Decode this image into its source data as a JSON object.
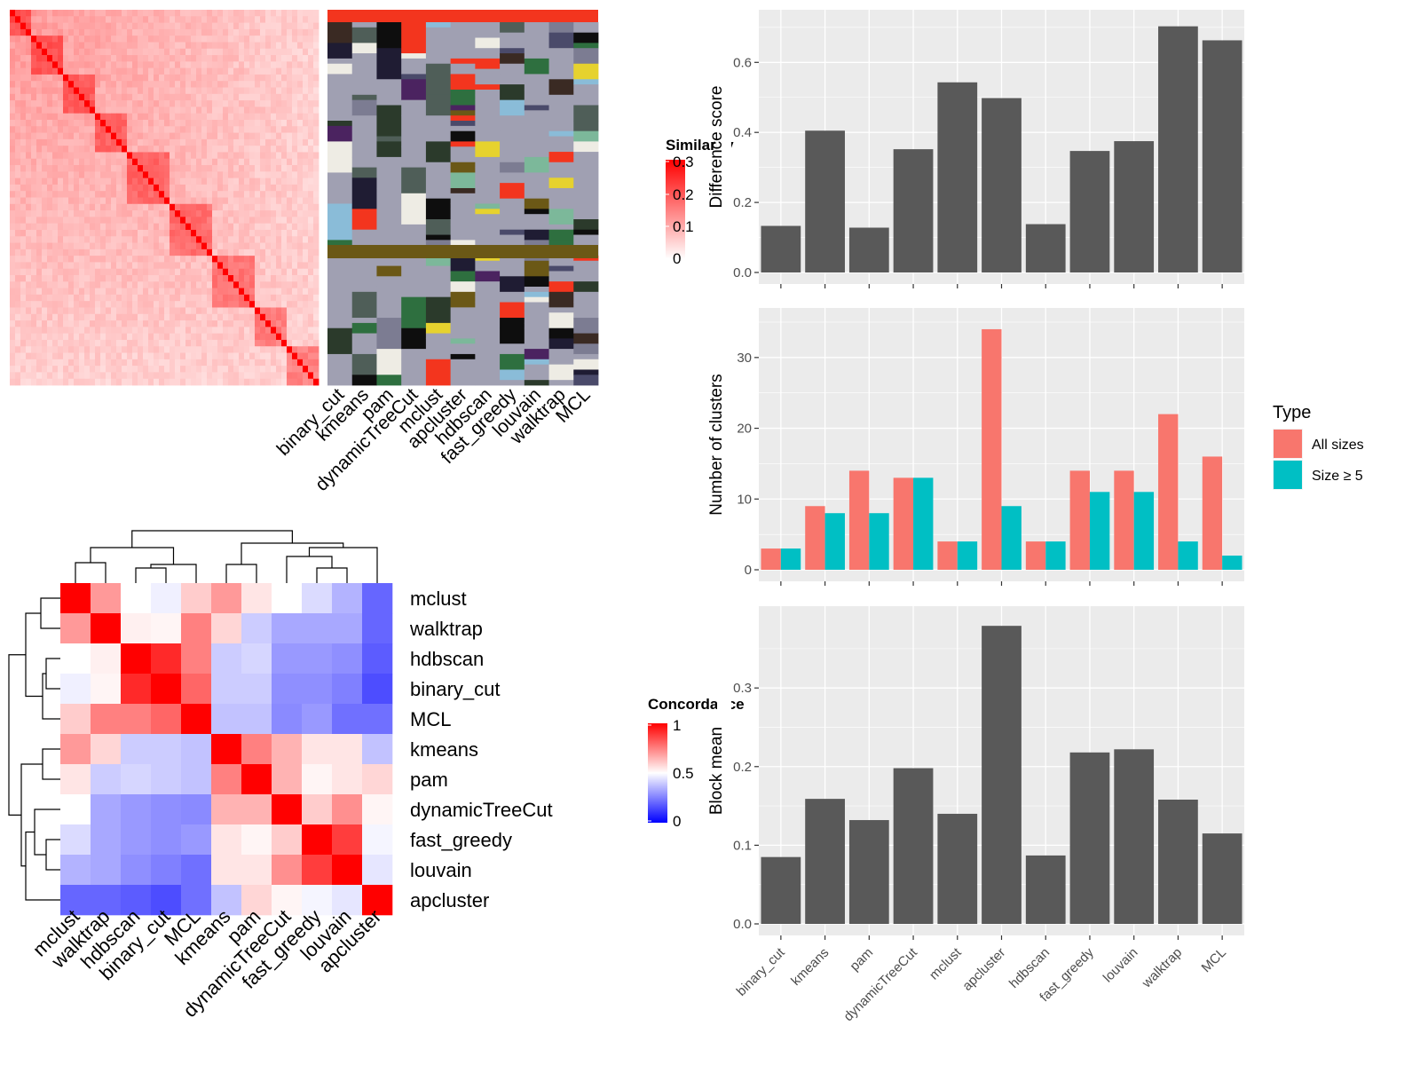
{
  "methods": [
    "binary_cut",
    "kmeans",
    "pam",
    "dynamicTreeCut",
    "mclust",
    "apcluster",
    "hdbscan",
    "fast_greedy",
    "louvain",
    "walktrap",
    "MCL"
  ],
  "similarity_legend": {
    "title": "Similarity",
    "ticks": [
      "0.3",
      "0.2",
      "0.1",
      "0"
    ],
    "colors": [
      "#ffffff",
      "#ff0000"
    ]
  },
  "concordance_legend": {
    "title": "Concordance",
    "ticks": [
      "1",
      "0.5",
      "0"
    ],
    "colors": [
      "#0000ff",
      "#ffffff",
      "#ff0000"
    ]
  },
  "palette": {
    "grey_bg": "#a0a0b2",
    "cluster_colors": [
      "#e6d22e",
      "#0e0e0e",
      "#4a4a6a",
      "#8abcd8",
      "#2b3a2b",
      "#4b2360",
      "#7cb89a",
      "#6b5816",
      "#1f1c33",
      "#eeece4",
      "#2e6f3f",
      "#3a2a23",
      "#f3351e",
      "#7c7c92",
      "#4f5e58"
    ]
  },
  "concordance_order": [
    "mclust",
    "walktrap",
    "hdbscan",
    "binary_cut",
    "MCL",
    "kmeans",
    "pam",
    "dynamicTreeCut",
    "fast_greedy",
    "louvain",
    "apcluster"
  ],
  "chart_data": [
    {
      "type": "heatmap",
      "name": "similarity_matrix",
      "legend_title": "Similarity",
      "value_range": [
        0,
        0.3
      ]
    },
    {
      "type": "heatmap",
      "name": "concordance",
      "legend_title": "Concordance",
      "row_labels": [
        "mclust",
        "walktrap",
        "hdbscan",
        "binary_cut",
        "MCL",
        "kmeans",
        "pam",
        "dynamicTreeCut",
        "fast_greedy",
        "louvain",
        "apcluster"
      ],
      "col_labels": [
        "mclust",
        "walktrap",
        "hdbscan",
        "binary_cut",
        "MCL",
        "kmeans",
        "pam",
        "dynamicTreeCut",
        "fast_greedy",
        "louvain",
        "apcluster"
      ],
      "values": [
        [
          1.0,
          0.7,
          0.5,
          0.47,
          0.6,
          0.7,
          0.55,
          0.5,
          0.43,
          0.35,
          0.2
        ],
        [
          0.7,
          1.0,
          0.53,
          0.52,
          0.75,
          0.58,
          0.4,
          0.33,
          0.33,
          0.33,
          0.2
        ],
        [
          0.5,
          0.53,
          1.0,
          0.92,
          0.75,
          0.4,
          0.42,
          0.3,
          0.3,
          0.28,
          0.18
        ],
        [
          0.47,
          0.52,
          0.92,
          1.0,
          0.8,
          0.4,
          0.4,
          0.28,
          0.28,
          0.25,
          0.15
        ],
        [
          0.6,
          0.75,
          0.75,
          0.8,
          1.0,
          0.38,
          0.38,
          0.27,
          0.3,
          0.22,
          0.22
        ],
        [
          0.7,
          0.58,
          0.4,
          0.4,
          0.38,
          1.0,
          0.75,
          0.65,
          0.55,
          0.55,
          0.38
        ],
        [
          0.55,
          0.4,
          0.42,
          0.4,
          0.38,
          0.75,
          1.0,
          0.65,
          0.52,
          0.55,
          0.58
        ],
        [
          0.5,
          0.33,
          0.3,
          0.28,
          0.27,
          0.65,
          0.65,
          1.0,
          0.6,
          0.72,
          0.52
        ],
        [
          0.43,
          0.33,
          0.3,
          0.28,
          0.3,
          0.55,
          0.52,
          0.6,
          1.0,
          0.88,
          0.48
        ],
        [
          0.35,
          0.33,
          0.28,
          0.25,
          0.22,
          0.55,
          0.55,
          0.72,
          0.88,
          1.0,
          0.45
        ],
        [
          0.2,
          0.2,
          0.18,
          0.15,
          0.22,
          0.38,
          0.58,
          0.52,
          0.48,
          0.45,
          1.0
        ]
      ],
      "value_range": [
        0,
        1
      ]
    },
    {
      "type": "bar",
      "name": "difference_score",
      "categories": [
        "binary_cut",
        "kmeans",
        "pam",
        "dynamicTreeCut",
        "mclust",
        "apcluster",
        "hdbscan",
        "fast_greedy",
        "louvain",
        "walktrap",
        "MCL"
      ],
      "values": [
        0.133,
        0.405,
        0.128,
        0.352,
        0.543,
        0.498,
        0.138,
        0.347,
        0.375,
        0.703,
        0.663
      ],
      "ylabel": "Difference score",
      "ylim": [
        0,
        0.73
      ],
      "yticks": [
        "0.0",
        "0.2",
        "0.4",
        "0.6"
      ],
      "grid": true
    },
    {
      "type": "bar",
      "name": "number_of_clusters",
      "categories": [
        "binary_cut",
        "kmeans",
        "pam",
        "dynamicTreeCut",
        "mclust",
        "apcluster",
        "hdbscan",
        "fast_greedy",
        "louvain",
        "walktrap",
        "MCL"
      ],
      "series": [
        {
          "name": "All sizes",
          "color": "#f8766d",
          "values": [
            3,
            9,
            14,
            13,
            4,
            34,
            4,
            14,
            14,
            22,
            16
          ]
        },
        {
          "name": "Size ≥ 5",
          "color": "#00bfc4",
          "values": [
            3,
            8,
            8,
            13,
            4,
            9,
            4,
            11,
            11,
            4,
            2
          ]
        }
      ],
      "ylabel": "Number of clusters",
      "ylim": [
        0,
        36
      ],
      "yticks": [
        "0",
        "10",
        "20",
        "30"
      ],
      "legend_title": "Type",
      "legend_position": "right",
      "grid": true
    },
    {
      "type": "bar",
      "name": "block_mean",
      "categories": [
        "binary_cut",
        "kmeans",
        "pam",
        "dynamicTreeCut",
        "mclust",
        "apcluster",
        "hdbscan",
        "fast_greedy",
        "louvain",
        "walktrap",
        "MCL"
      ],
      "values": [
        0.085,
        0.159,
        0.132,
        0.198,
        0.14,
        0.379,
        0.087,
        0.218,
        0.222,
        0.158,
        0.115
      ],
      "ylabel": "Block mean",
      "ylim": [
        0,
        0.395
      ],
      "yticks": [
        "0.0",
        "0.1",
        "0.2",
        "0.3"
      ],
      "grid": true
    }
  ]
}
